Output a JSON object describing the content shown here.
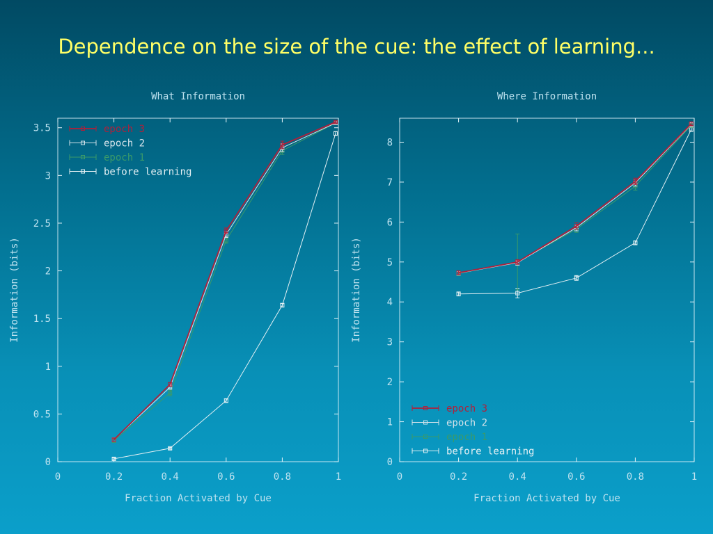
{
  "slide": {
    "title": "Dependence on the size of the cue: the effect of learning..."
  },
  "colors": {
    "title": "#ffff66",
    "text": "#bfe3f0",
    "grid": "#d8eef6",
    "axis": "#e8f6fb"
  },
  "chart_data": [
    {
      "type": "line",
      "title": "What Information",
      "xlabel": "Fraction Activated by Cue",
      "ylabel": "Information (bits)",
      "xlim": [
        0,
        1
      ],
      "ylim": [
        0,
        3.6
      ],
      "xticks": [
        0,
        0.2,
        0.4,
        0.6,
        0.8,
        1
      ],
      "xtick_labels": [
        "0",
        "0.2",
        "0.4",
        "0.6",
        "0.8",
        "1"
      ],
      "yticks": [
        0,
        0.5,
        1,
        1.5,
        2,
        2.5,
        3,
        3.5
      ],
      "ytick_labels": [
        "0",
        "0.5",
        "1",
        "1.5",
        "2",
        "2.5",
        "3",
        "3.5"
      ],
      "grid": false,
      "legend_position": "top-left",
      "series": [
        {
          "name": "epoch 3",
          "color": "#b0203a",
          "x": [
            0.2,
            0.4,
            0.6,
            0.8,
            0.99
          ],
          "y": [
            0.23,
            0.81,
            2.42,
            3.32,
            3.56
          ],
          "err": [
            0.02,
            0.02,
            0.03,
            0.04,
            0.01
          ]
        },
        {
          "name": "epoch 2",
          "color": "#d4e2ea",
          "x": [
            0.2,
            0.4,
            0.6,
            0.8,
            0.99
          ],
          "y": [
            0.23,
            0.78,
            2.38,
            3.29,
            3.55
          ],
          "err": [
            0.02,
            0.02,
            0.03,
            0.04,
            0.01
          ]
        },
        {
          "name": "epoch 1",
          "color": "#3a9a6a",
          "x": [
            0.2,
            0.4,
            0.6,
            0.8,
            0.99
          ],
          "y": [
            0.22,
            0.72,
            2.32,
            3.26,
            3.55
          ],
          "err": [
            0.02,
            0.03,
            0.03,
            0.04,
            0.01
          ]
        },
        {
          "name": "before learning",
          "color": "#e4f0f4",
          "x": [
            0.2,
            0.4,
            0.6,
            0.8,
            0.99
          ],
          "y": [
            0.03,
            0.14,
            0.64,
            1.64,
            3.44
          ],
          "err": [
            0.01,
            0.01,
            0.02,
            0.02,
            0.02
          ]
        }
      ]
    },
    {
      "type": "line",
      "title": "Where Information",
      "xlabel": "Fraction Activated by Cue",
      "ylabel": "Information (bits)",
      "xlim": [
        0,
        1
      ],
      "ylim": [
        0,
        8.6
      ],
      "xticks": [
        0,
        0.2,
        0.4,
        0.6,
        0.8,
        1
      ],
      "xtick_labels": [
        "0",
        "0.2",
        "0.4",
        "0.6",
        "0.8",
        "1"
      ],
      "yticks": [
        0,
        1,
        2,
        3,
        4,
        5,
        6,
        7,
        8
      ],
      "ytick_labels": [
        "0",
        "1",
        "2",
        "3",
        "4",
        "5",
        "6",
        "7",
        "8"
      ],
      "grid": false,
      "legend_position": "bottom-left",
      "series": [
        {
          "name": "epoch 3",
          "color": "#b0203a",
          "x": [
            0.2,
            0.4,
            0.6,
            0.8,
            0.99
          ],
          "y": [
            4.73,
            5.0,
            5.9,
            7.02,
            8.46
          ],
          "err": [
            0.05,
            0.06,
            0.08,
            0.08,
            0.05
          ]
        },
        {
          "name": "epoch 2",
          "color": "#d4e2ea",
          "x": [
            0.2,
            0.4,
            0.6,
            0.8,
            0.99
          ],
          "y": [
            4.72,
            4.98,
            5.86,
            6.98,
            8.44
          ],
          "err": [
            0.05,
            0.06,
            0.08,
            0.08,
            0.05
          ]
        },
        {
          "name": "epoch 1",
          "color": "#3a9a6a",
          "x": [
            0.2,
            0.4,
            0.6,
            0.8,
            0.99
          ],
          "y": [
            4.71,
            5.0,
            5.82,
            6.9,
            8.42
          ],
          "err": [
            0.05,
            0.7,
            0.08,
            0.1,
            0.05
          ]
        },
        {
          "name": "before learning",
          "color": "#e4f0f4",
          "x": [
            0.2,
            0.4,
            0.6,
            0.8,
            0.99
          ],
          "y": [
            4.2,
            4.22,
            4.6,
            5.48,
            8.32
          ],
          "err": [
            0.05,
            0.12,
            0.06,
            0.05,
            0.05
          ]
        }
      ]
    }
  ]
}
